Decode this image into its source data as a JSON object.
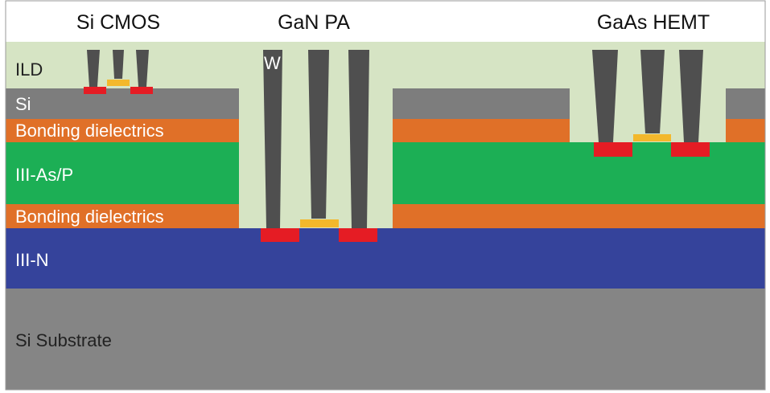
{
  "titles": {
    "si_cmos": "Si CMOS",
    "gan_pa": "GaN PA",
    "gaas_hemt": "GaAs HEMT"
  },
  "layers": {
    "ild": "ILD",
    "si": "Si",
    "bonding_top": "Bonding dielectrics",
    "iii_as_p": "III-As/P",
    "bonding_bottom": "Bonding dielectrics",
    "iii_n": "III-N",
    "substrate": "Si Substrate"
  },
  "annotations": {
    "tungsten": "W"
  },
  "colors": {
    "ild": "#d6e4c4",
    "si": "#7d7d7d",
    "bonding": "#e07028",
    "iii_as_p": "#1caf55",
    "iii_n": "#35439b",
    "substrate": "#858585",
    "plug": "#4f4f4f",
    "contact_red": "#e51c24",
    "gate_yellow": "#f3b82c"
  }
}
